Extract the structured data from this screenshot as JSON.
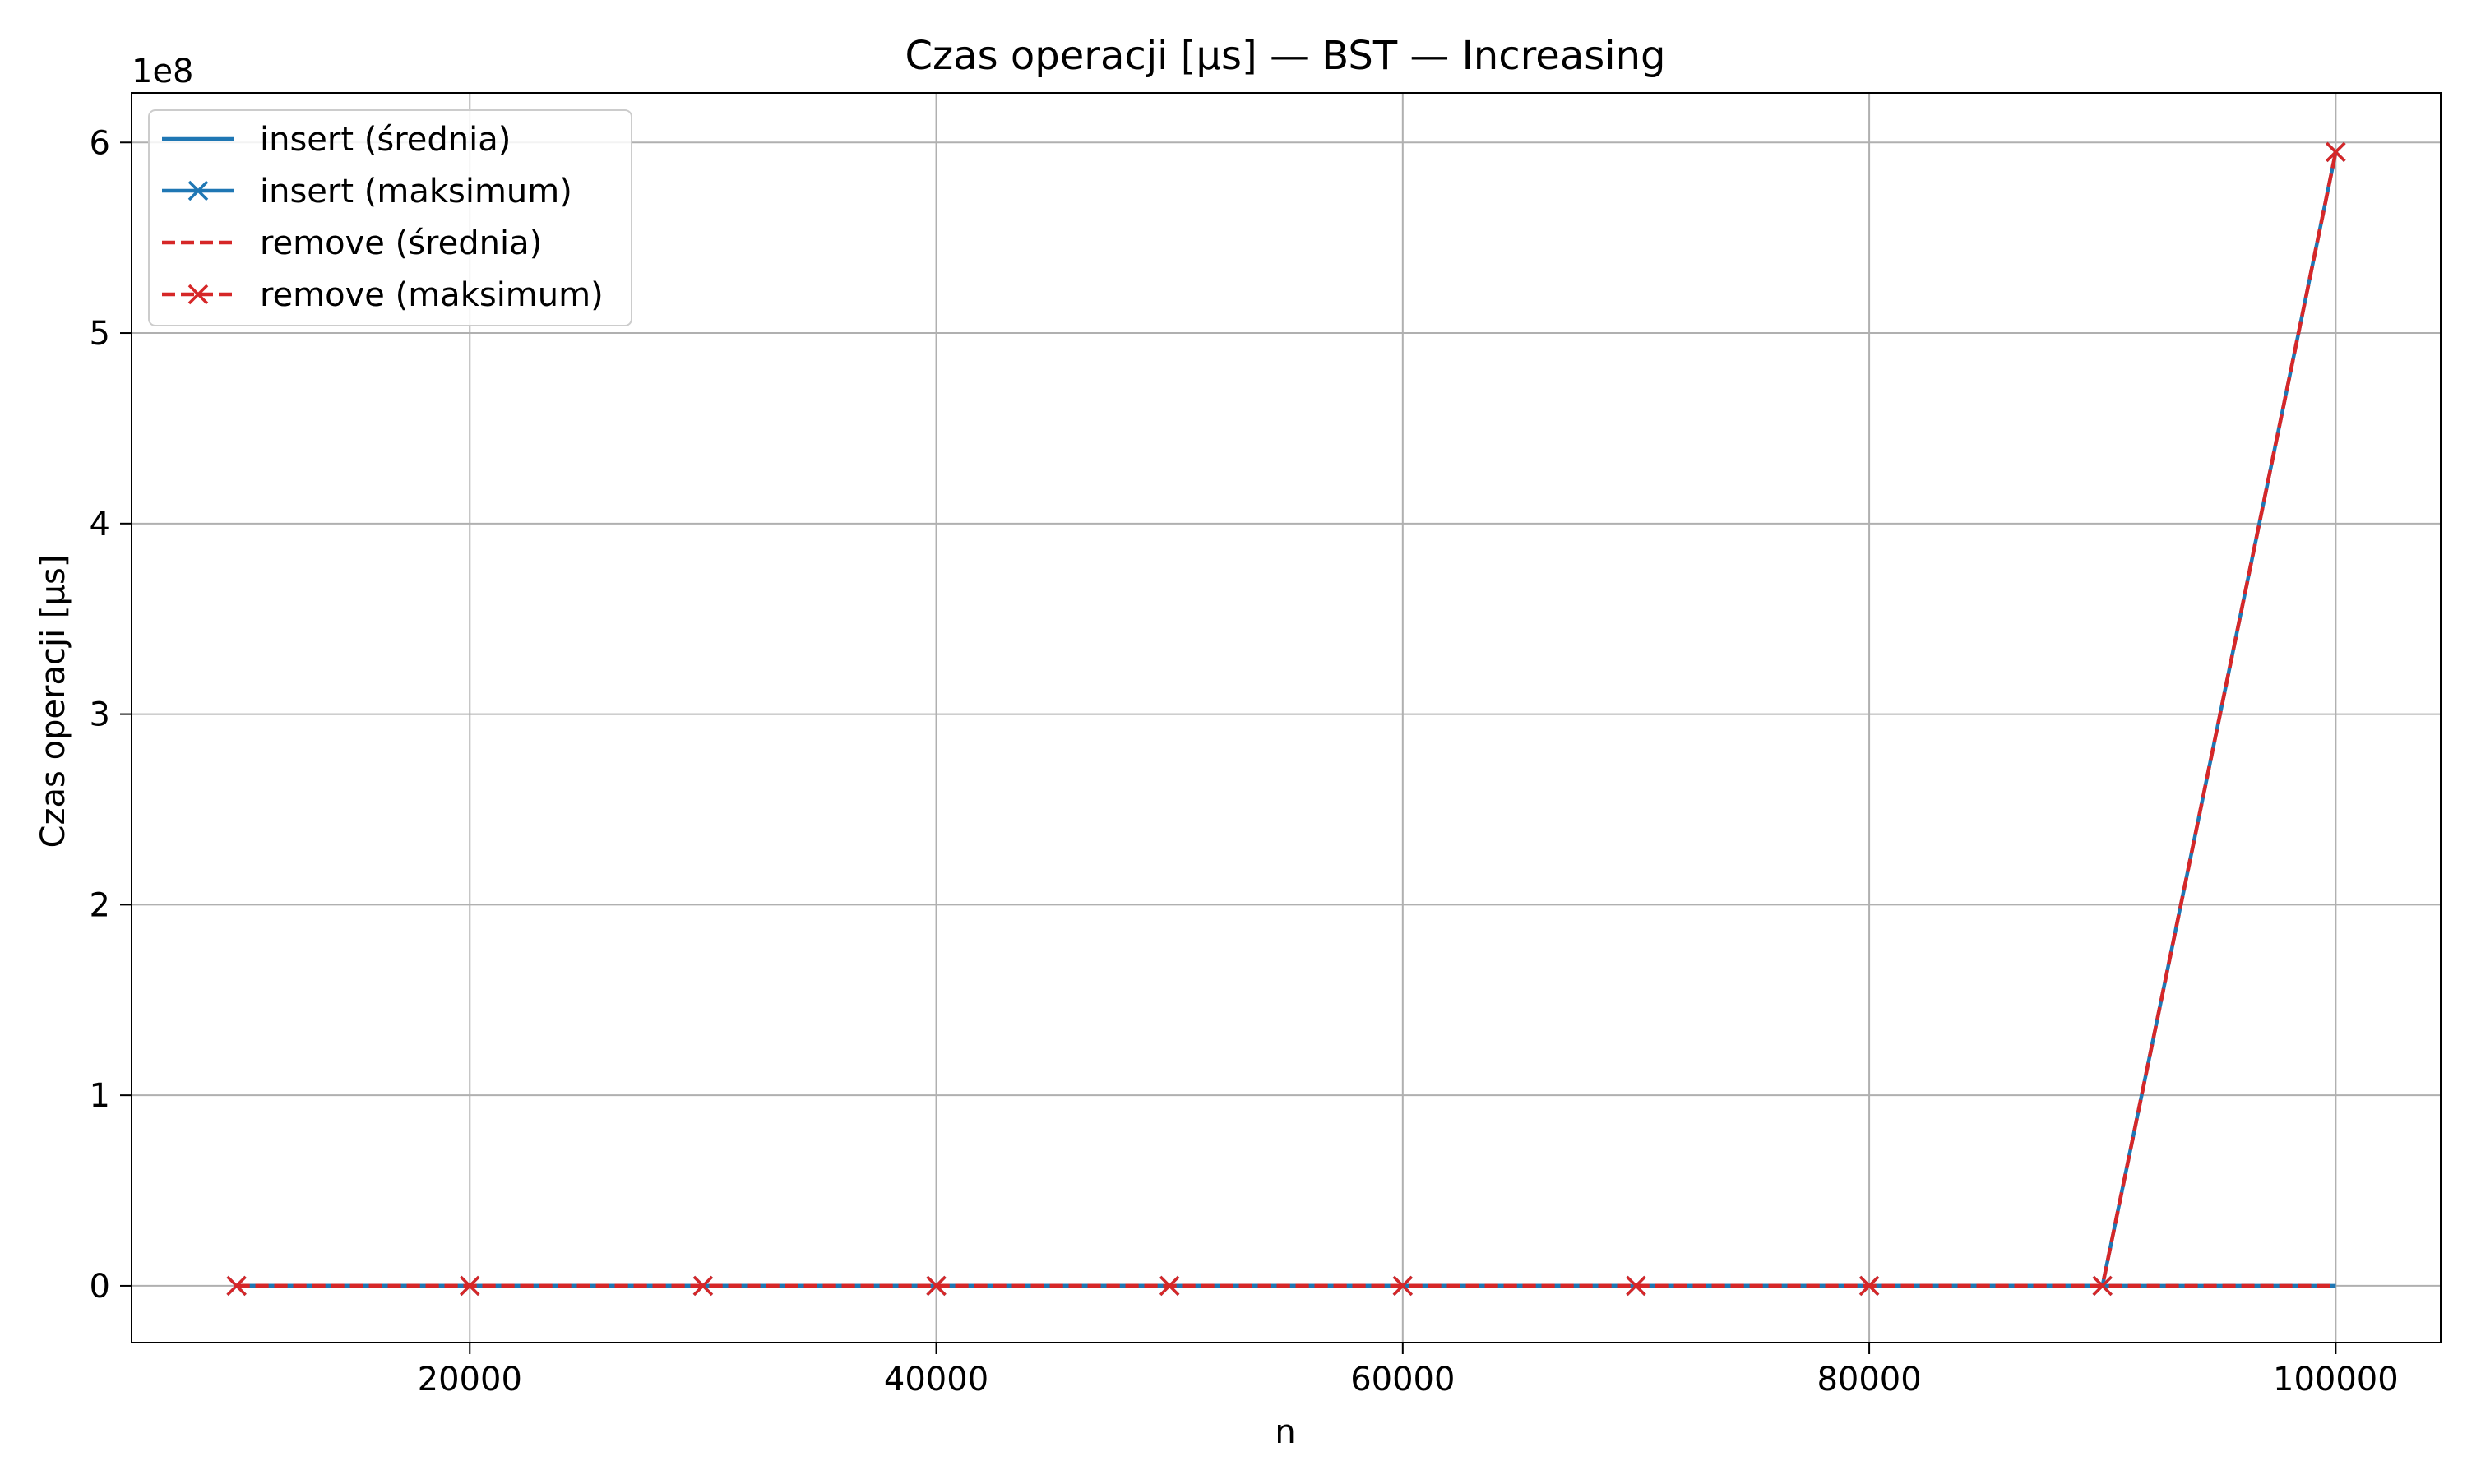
{
  "chart_data": {
    "type": "line",
    "title": "Czas operacji [µs] — BST — Increasing",
    "xlabel": "n",
    "ylabel": "Czas operacji [µs]",
    "y_offset_text": "1e8",
    "xlim": [
      5500,
      104500
    ],
    "ylim": [
      -0.298,
      6.26
    ],
    "y_scale_multiplier": 100000000,
    "x_ticks": [
      20000,
      40000,
      60000,
      80000,
      100000
    ],
    "y_ticks": [
      0,
      1,
      2,
      3,
      4,
      5,
      6
    ],
    "grid": true,
    "legend_position": "upper-left",
    "x": [
      10000,
      20000,
      30000,
      40000,
      50000,
      60000,
      70000,
      80000,
      90000,
      100000
    ],
    "series": [
      {
        "name": "insert (średnia)",
        "color": "#1f77b4",
        "linestyle": "solid",
        "marker": "none",
        "values": [
          0,
          0,
          0,
          0,
          0,
          0,
          0,
          0,
          0,
          0
        ]
      },
      {
        "name": "insert (maksimum)",
        "color": "#1f77b4",
        "linestyle": "solid",
        "marker": "x",
        "values": [
          0,
          0,
          0,
          0,
          0,
          0,
          0,
          0,
          0,
          5.95
        ]
      },
      {
        "name": "remove (średnia)",
        "color": "#d62728",
        "linestyle": "dashed",
        "marker": "none",
        "values": [
          0,
          0,
          0,
          0,
          0,
          0,
          0,
          0,
          0,
          0
        ]
      },
      {
        "name": "remove (maksimum)",
        "color": "#d62728",
        "linestyle": "dashed",
        "marker": "x",
        "values": [
          0,
          0,
          0,
          0,
          0,
          0,
          0,
          0,
          0,
          5.95
        ]
      }
    ]
  }
}
